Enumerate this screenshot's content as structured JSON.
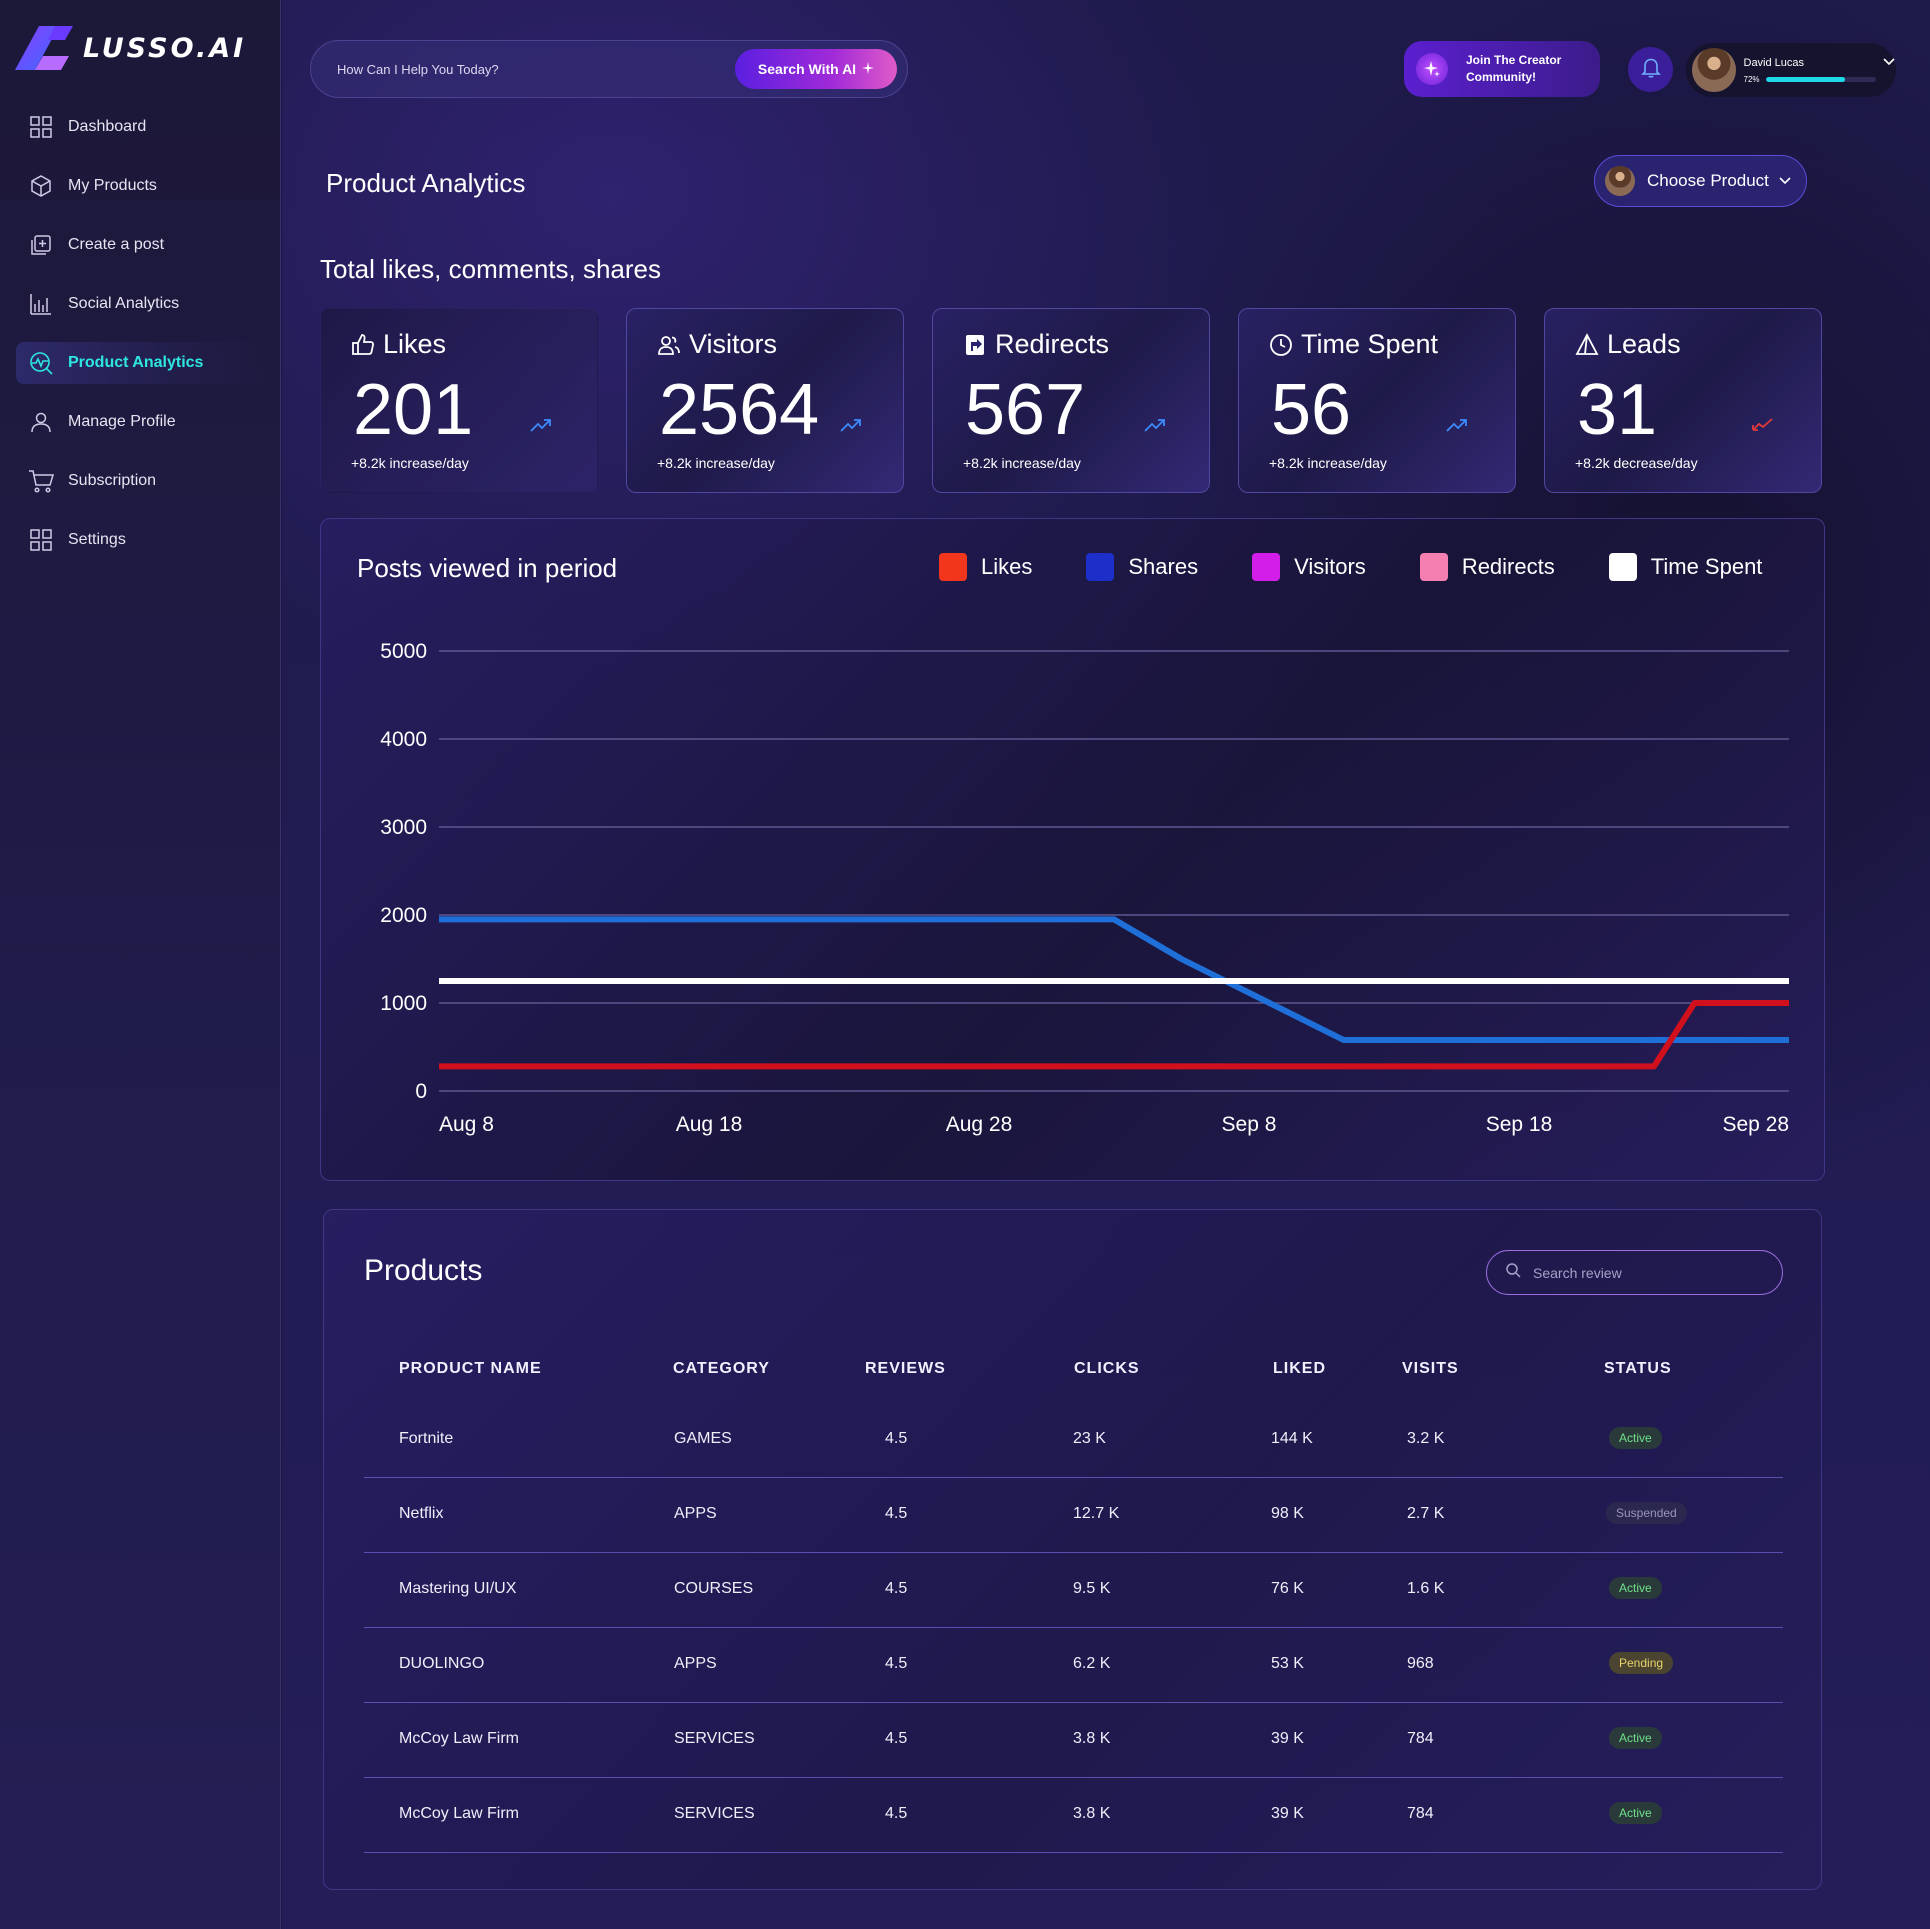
{
  "brand": {
    "name": "LUSSO.AI"
  },
  "sidebar": {
    "items": [
      {
        "label": "Dashboard",
        "icon": "grid-icon",
        "active": false
      },
      {
        "label": "My Products",
        "icon": "box-icon",
        "active": false
      },
      {
        "label": "Create a post",
        "icon": "add-square-icon",
        "active": false
      },
      {
        "label": "Social Analytics",
        "icon": "bar-chart-icon",
        "active": false
      },
      {
        "label": "Product Analytics",
        "icon": "analytics-icon",
        "active": true
      },
      {
        "label": "Manage Profile",
        "icon": "user-icon",
        "active": false
      },
      {
        "label": "Subscription",
        "icon": "cart-icon",
        "active": false
      },
      {
        "label": "Settings",
        "icon": "grid-icon",
        "active": false
      }
    ]
  },
  "header": {
    "search_placeholder": "How Can I Help You Today?",
    "search_button": "Search With AI",
    "creator_line1": "Join The Creator",
    "creator_line2": "Community!",
    "user": {
      "name": "David Lucas",
      "progress_label": "72%",
      "progress": 0.72
    }
  },
  "page": {
    "title": "Product Analytics",
    "choose_product": "Choose Product",
    "subtitle": "Total likes, comments, shares"
  },
  "stats": [
    {
      "label": "Likes",
      "value": "201",
      "delta": "+8.2k increase/day",
      "trend": "up",
      "icon": "thumbs-up-icon"
    },
    {
      "label": "Visitors",
      "value": "2564",
      "delta": "+8.2k increase/day",
      "trend": "up",
      "icon": "users-icon"
    },
    {
      "label": "Redirects",
      "value": "567",
      "delta": "+8.2k increase/day",
      "trend": "up",
      "icon": "redirect-icon"
    },
    {
      "label": "Time Spent",
      "value": "56",
      "delta": "+8.2k increase/day",
      "trend": "up",
      "icon": "clock-icon"
    },
    {
      "label": "Leads",
      "value": "31",
      "delta": "+8.2k decrease/day",
      "trend": "down",
      "icon": "triangle-icon"
    }
  ],
  "colors": {
    "up": "#3d8bff",
    "down": "#e23a3a",
    "accent": "#2ee6e0"
  },
  "chart_data": {
    "type": "line",
    "title": "Posts viewed in period",
    "x": [
      "Aug 8",
      "Aug 18",
      "Aug 28",
      "Sep 8",
      "Sep 18",
      "Sep 28"
    ],
    "ylim": [
      0,
      5000
    ],
    "yticks": [
      0,
      1000,
      2000,
      3000,
      4000,
      5000
    ],
    "grid": true,
    "legend_position": "top-right",
    "legend": [
      {
        "name": "Likes",
        "color": "#f2361c"
      },
      {
        "name": "Shares",
        "color": "#1d2fc8"
      },
      {
        "name": "Visitors",
        "color": "#d31de8"
      },
      {
        "name": "Redirects",
        "color": "#f57fb0"
      },
      {
        "name": "Time Spent",
        "color": "#ffffff"
      }
    ],
    "series": [
      {
        "name": "Shares",
        "color": "#1f6fd8",
        "x": [
          0,
          2.5,
          2.75,
          3.35,
          5
        ],
        "values": [
          1950,
          1950,
          1500,
          580,
          580
        ]
      },
      {
        "name": "Time Spent",
        "color": "#ffffff",
        "x": [
          0,
          5
        ],
        "values": [
          1250,
          1250
        ]
      },
      {
        "name": "Likes",
        "color": "#d0101c",
        "x": [
          0,
          4.5,
          4.65,
          5
        ],
        "values": [
          280,
          280,
          1000,
          1000
        ]
      }
    ]
  },
  "products": {
    "title": "Products",
    "search_placeholder": "Search review",
    "columns": [
      "PRODUCT NAME",
      "CATEGORY",
      "REVIEWS",
      "CLICKS",
      "LIKED",
      "VISITS",
      "STATUS"
    ],
    "rows": [
      {
        "name": "Fortnite",
        "category": "GAMES",
        "reviews": "4.5",
        "clicks": "23 K",
        "liked": "144 K",
        "visits": "3.2 K",
        "status": "Active",
        "status_kind": "active"
      },
      {
        "name": "Netflix",
        "category": "APPS",
        "reviews": "4.5",
        "clicks": "12.7 K",
        "liked": "98 K",
        "visits": "2.7 K",
        "status": "Suspended",
        "status_kind": "suspended"
      },
      {
        "name": "Mastering UI/UX",
        "category": "COURSES",
        "reviews": "4.5",
        "clicks": "9.5 K",
        "liked": "76 K",
        "visits": "1.6 K",
        "status": "Active",
        "status_kind": "active"
      },
      {
        "name": "DUOLINGO",
        "category": "APPS",
        "reviews": "4.5",
        "clicks": "6.2 K",
        "liked": "53 K",
        "visits": "968",
        "status": "Pending",
        "status_kind": "pending"
      },
      {
        "name": "McCoy Law Firm",
        "category": "SERVICES",
        "reviews": "4.5",
        "clicks": "3.8 K",
        "liked": "39 K",
        "visits": "784",
        "status": "Active",
        "status_kind": "active"
      },
      {
        "name": "McCoy Law Firm",
        "category": "SERVICES",
        "reviews": "4.5",
        "clicks": "3.8 K",
        "liked": "39 K",
        "visits": "784",
        "status": "Active",
        "status_kind": "active"
      }
    ]
  }
}
